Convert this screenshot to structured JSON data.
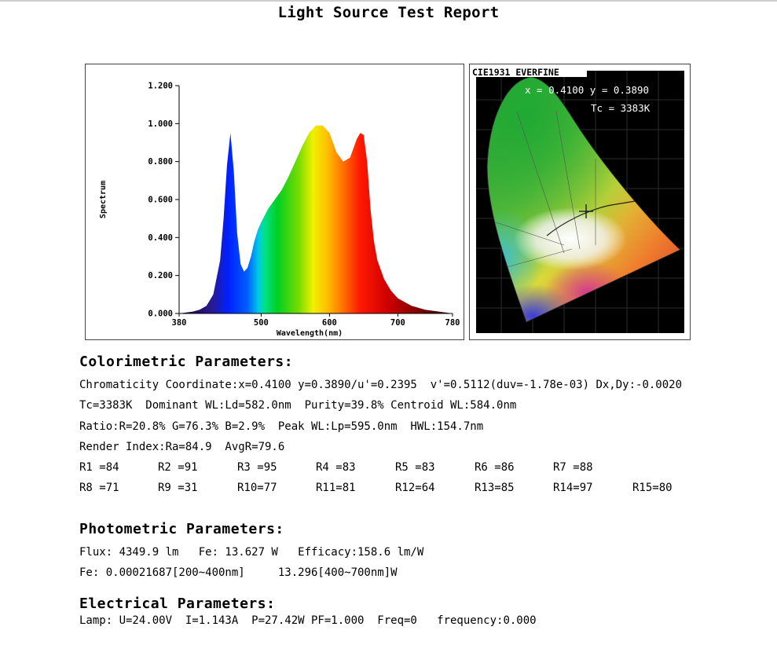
{
  "title": "Light Source Test Report",
  "chart_data": [
    {
      "type": "area",
      "xlabel": "Wavelength(nm)",
      "ylabel": "Spectrum",
      "xlim": [
        380,
        780
      ],
      "ylim": [
        0,
        1.2
      ],
      "x_ticks": [
        380,
        500,
        600,
        700,
        780
      ],
      "y_ticks": [
        "0.000",
        "0.200",
        "0.400",
        "0.600",
        "0.800",
        "1.000",
        "1.200"
      ],
      "grid": false,
      "series": [
        {
          "x": [
            380,
            400,
            410,
            420,
            430,
            440,
            445,
            450,
            455,
            460,
            465,
            470,
            475,
            480,
            485,
            490,
            495,
            500,
            510,
            520,
            530,
            540,
            550,
            560,
            570,
            580,
            590,
            595,
            600,
            610,
            620,
            630,
            640,
            645,
            650,
            655,
            660,
            665,
            670,
            680,
            690,
            700,
            720,
            740,
            760,
            780
          ],
          "values": [
            0,
            0.01,
            0.02,
            0.04,
            0.1,
            0.28,
            0.5,
            0.78,
            0.95,
            0.75,
            0.42,
            0.26,
            0.22,
            0.24,
            0.3,
            0.38,
            0.44,
            0.48,
            0.55,
            0.6,
            0.65,
            0.72,
            0.8,
            0.88,
            0.95,
            0.99,
            0.99,
            0.97,
            0.95,
            0.85,
            0.8,
            0.82,
            0.92,
            0.95,
            0.94,
            0.8,
            0.55,
            0.38,
            0.28,
            0.18,
            0.12,
            0.08,
            0.04,
            0.02,
            0.01,
            0
          ]
        }
      ]
    },
    {
      "type": "scatter",
      "title": "CIE1931 EVERFINE",
      "annotations": [
        "x = 0.4100 y = 0.3890",
        "Tc = 3383K"
      ],
      "series": [
        {
          "x": [
            0.41
          ],
          "values": [
            0.389
          ]
        }
      ]
    }
  ],
  "colorimetric": {
    "heading": "Colorimetric Parameters:",
    "line1": "Chromaticity Coordinate:x=0.4100 y=0.3890/u'=0.2395  v'=0.5112(duv=-1.78e-03) Dx,Dy:-0.0020",
    "line2": "Tc=3383K  Dominant WL:Ld=582.0nm  Purity=39.8% Centroid WL:584.0nm",
    "line3": "Ratio:R=20.8% G=76.3% B=2.9%  Peak WL:Lp=595.0nm  HWL:154.7nm",
    "line4": "Render Index:Ra=84.9  AvgR=79.6",
    "r_row1": [
      "R1 =84",
      "R2 =91",
      "R3 =95",
      "R4 =83",
      "R5 =83",
      "R6 =86",
      "R7 =88"
    ],
    "r_row2": [
      "R8 =71",
      "R9 =31",
      "R10=77",
      "R11=81",
      "R12=64",
      "R13=85",
      "R14=97",
      "R15=80"
    ]
  },
  "photometric": {
    "heading": "Photometric Parameters:",
    "line1": "Flux: 4349.9 lm   Fe: 13.627 W   Efficacy:158.6 lm/W",
    "line2": "Fe: 0.00021687[200~400nm]     13.296[400~700nm]W"
  },
  "electrical": {
    "heading": "Electrical Parameters:",
    "line1": "Lamp: U=24.00V  I=1.143A  P=27.42W PF=1.000  Freq=0   frequency:0.000"
  }
}
